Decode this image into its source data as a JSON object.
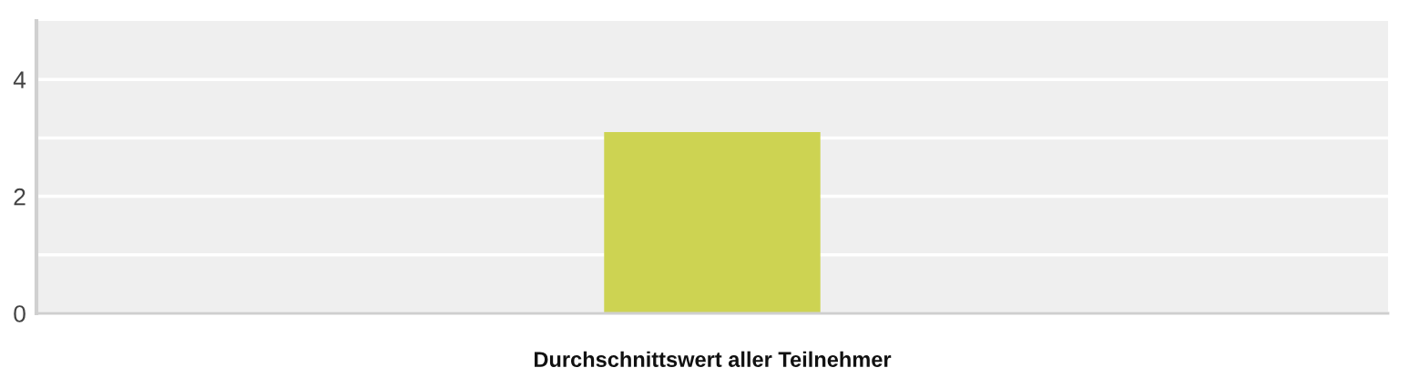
{
  "chart_data": {
    "type": "bar",
    "categories": [
      "Durchschnittswert aller Teilnehmer"
    ],
    "values": [
      3.1
    ],
    "color": "#cdd352",
    "ylim": [
      0,
      5
    ],
    "yticks": [
      0,
      {
        "value": 1,
        "label": null
      },
      2,
      {
        "value": 3,
        "label": null
      },
      4
    ],
    "grid": "y"
  }
}
